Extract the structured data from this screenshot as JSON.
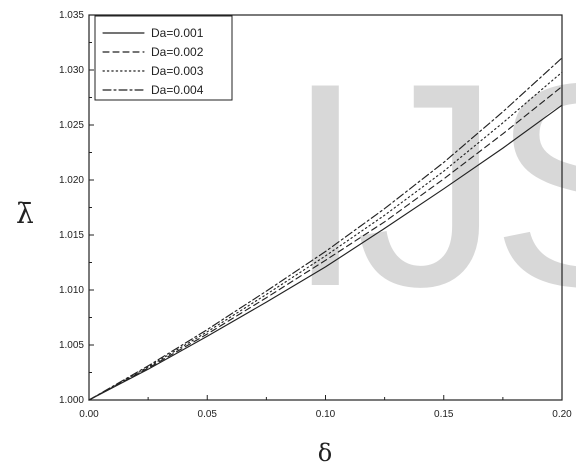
{
  "chart_data": {
    "type": "line",
    "title": "",
    "xlabel": "δ",
    "ylabel": "λ̄",
    "xlim": [
      0.0,
      0.2
    ],
    "ylim": [
      1.0,
      1.035
    ],
    "x_ticks": [
      "0.00",
      "0.05",
      "0.10",
      "0.15",
      "0.20"
    ],
    "y_ticks": [
      "1.000",
      "1.005",
      "1.010",
      "1.015",
      "1.020",
      "1.025",
      "1.030",
      "1.035"
    ],
    "x": [
      0.0,
      0.025,
      0.05,
      0.075,
      0.1,
      0.125,
      0.15,
      0.175,
      0.2
    ],
    "series": [
      {
        "name": "Da=0.001",
        "style": "solid",
        "values": [
          1.0,
          1.0028,
          1.0058,
          1.0089,
          1.0121,
          1.0156,
          1.0192,
          1.0229,
          1.0268
        ]
      },
      {
        "name": "Da=0.002",
        "style": "dashed",
        "values": [
          1.0,
          1.0029,
          1.006,
          1.0093,
          1.0127,
          1.0162,
          1.0201,
          1.0242,
          1.0285
        ]
      },
      {
        "name": "Da=0.003",
        "style": "dotted",
        "values": [
          1.0,
          1.003,
          1.0062,
          1.0096,
          1.0131,
          1.0168,
          1.0208,
          1.0252,
          1.0298
        ]
      },
      {
        "name": "Da=0.004",
        "style": "dashdot",
        "values": [
          1.0,
          1.0031,
          1.0064,
          1.0099,
          1.0135,
          1.0174,
          1.0216,
          1.0262,
          1.0311
        ]
      }
    ],
    "legend_position": "top-left",
    "grid": false
  },
  "watermark": {
    "text": "IJS"
  }
}
